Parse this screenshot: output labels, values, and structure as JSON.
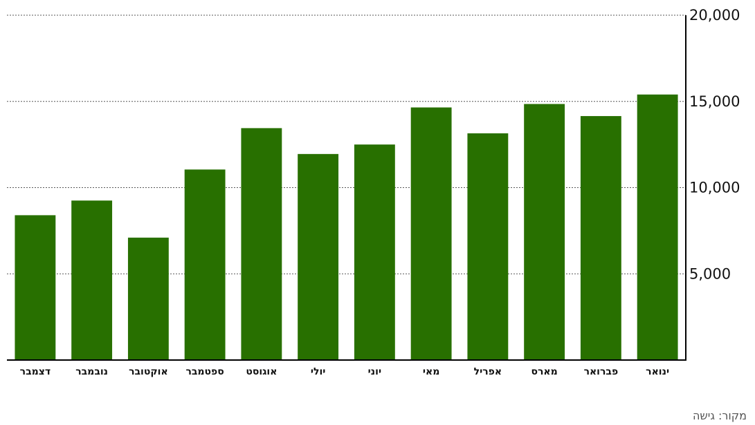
{
  "chart_data": {
    "type": "bar",
    "categories": [
      "ינואר",
      "פברואר",
      "מארס",
      "אפריל",
      "מאי",
      "יוני",
      "יולי",
      "אוגוסט",
      "ספטמבר",
      "אוקטובר",
      "נובמבר",
      "דצמבר"
    ],
    "values": [
      15400,
      14150,
      14850,
      13150,
      14650,
      12500,
      11950,
      13450,
      11050,
      7100,
      9250,
      8400
    ],
    "title": "",
    "xlabel": "",
    "ylabel": "",
    "ylim": [
      0,
      20000
    ],
    "yticks": [
      5000,
      10000,
      15000,
      20000
    ],
    "ytick_labels": [
      "5,000",
      "10,000",
      "15,000",
      "20,000"
    ],
    "grid": true,
    "x_direction": "right-to-left",
    "y_axis_side": "right",
    "bar_color": "#287000"
  },
  "source_note": "מקור: גישה"
}
